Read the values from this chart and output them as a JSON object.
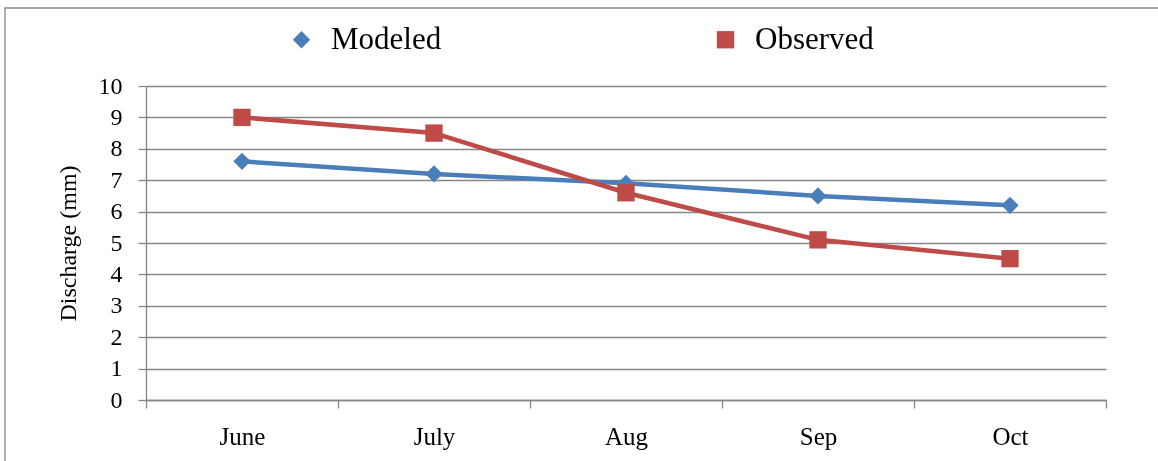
{
  "chart_data": {
    "type": "line",
    "ylabel": "Discharge (mm)",
    "categories": [
      "June",
      "July",
      "Aug",
      "Sep",
      "Oct"
    ],
    "series": [
      {
        "name": "Modeled",
        "color": "#4a7ebb",
        "marker": "diamond",
        "values": [
          7.6,
          7.2,
          6.9,
          6.5,
          6.2
        ]
      },
      {
        "name": "Observed",
        "color": "#be4b48",
        "marker": "square",
        "values": [
          9.0,
          8.5,
          6.6,
          5.1,
          4.5
        ]
      }
    ],
    "ylim": [
      0,
      10
    ],
    "yticks": [
      0,
      1,
      2,
      3,
      4,
      5,
      6,
      7,
      8,
      9,
      10
    ],
    "grid": "y",
    "legend": "top",
    "line_style": "solid"
  }
}
